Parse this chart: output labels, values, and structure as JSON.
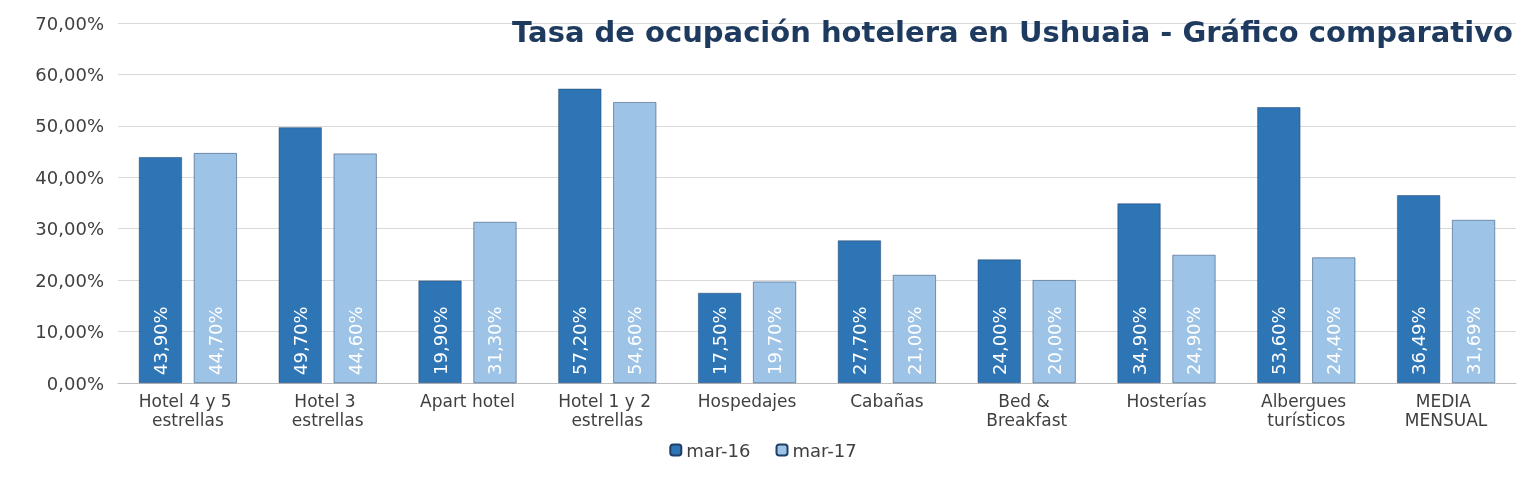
{
  "chart_data": {
    "type": "bar",
    "title": "Tasa de ocupación hotelera en Ushuaia - Gráfico comparativo",
    "categories": [
      "Hotel 4 y 5 estrellas",
      "Hotel 3 estrellas",
      "Apart hotel",
      "Hotel 1 y 2 estrellas",
      "Hospedajes",
      "Cabañas",
      "Bed & Breakfast",
      "Hosterías",
      "Albergues turísticos",
      "MEDIA MENSUAL"
    ],
    "series": [
      {
        "name": "mar-16",
        "color": "#2e75b6",
        "values": [
          43.9,
          49.7,
          19.9,
          57.2,
          17.5,
          27.7,
          24.0,
          34.9,
          53.6,
          36.49
        ],
        "value_labels": [
          "43,90%",
          "49,70%",
          "19,90%",
          "57,20%",
          "17,50%",
          "27,70%",
          "24,00%",
          "34,90%",
          "53,60%",
          "36,49%"
        ]
      },
      {
        "name": "mar-17",
        "color": "#9dc3e6",
        "values": [
          44.7,
          44.6,
          31.3,
          54.6,
          19.7,
          21.0,
          20.0,
          24.9,
          24.4,
          31.69
        ],
        "value_labels": [
          "44,70%",
          "44,60%",
          "31,30%",
          "54,60%",
          "19,70%",
          "21,00%",
          "20,00%",
          "24,90%",
          "24,40%",
          "31,69%"
        ]
      }
    ],
    "ylim": [
      0,
      70
    ],
    "yticks": [
      {
        "value": 0,
        "label": "0,00%"
      },
      {
        "value": 10,
        "label": "10,00%"
      },
      {
        "value": 20,
        "label": "20,00%"
      },
      {
        "value": 30,
        "label": "30,00%"
      },
      {
        "value": 40,
        "label": "40,00%"
      },
      {
        "value": 50,
        "label": "50,00%"
      },
      {
        "value": 60,
        "label": "60,00%"
      },
      {
        "value": 70,
        "label": "70,00%"
      }
    ],
    "grid": "y",
    "legend": "bottom"
  }
}
